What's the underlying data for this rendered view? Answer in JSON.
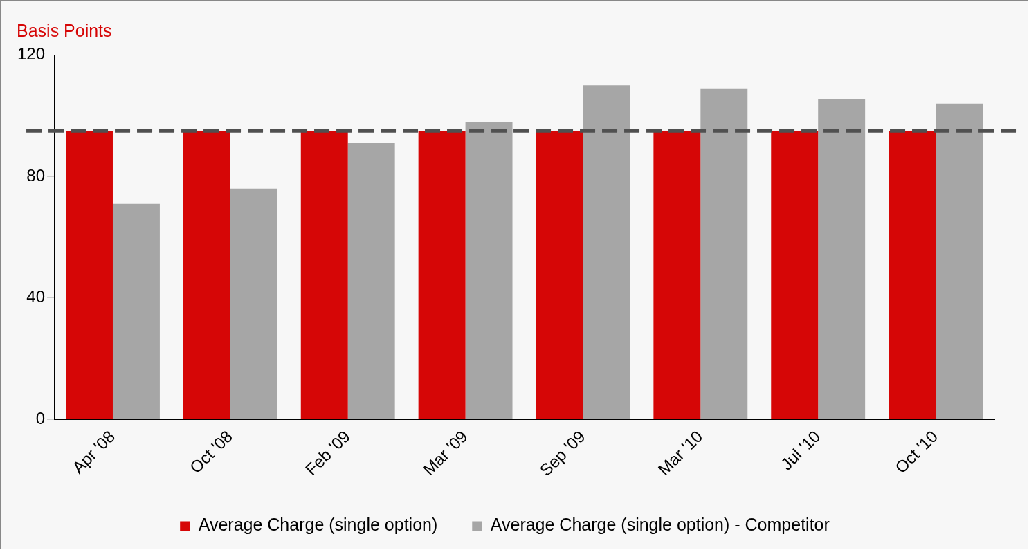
{
  "chart_data": {
    "type": "bar",
    "ylabel": "Basis Points",
    "categories": [
      "Apr '08",
      "Oct '08",
      "Feb '09",
      "Mar '09",
      "Sep '09",
      "Mar '10",
      "Jul '10",
      "Oct '10"
    ],
    "series": [
      {
        "name": "Average Charge (single option)",
        "color": "#d60606",
        "values": [
          95,
          95,
          95,
          95,
          95,
          95,
          95,
          95
        ]
      },
      {
        "name": "Average Charge (single option) - Competitor",
        "color": "#a6a6a6",
        "values": [
          71,
          76,
          91,
          98,
          110,
          109,
          105.5,
          104
        ]
      }
    ],
    "ylim": [
      0,
      120
    ],
    "yticks": [
      0,
      40,
      80,
      120
    ],
    "grid": false,
    "legend": "bottom",
    "ref_lines": [
      {
        "axis": "y",
        "value": 95,
        "color": "#505050",
        "line_style": "dashed"
      }
    ]
  }
}
